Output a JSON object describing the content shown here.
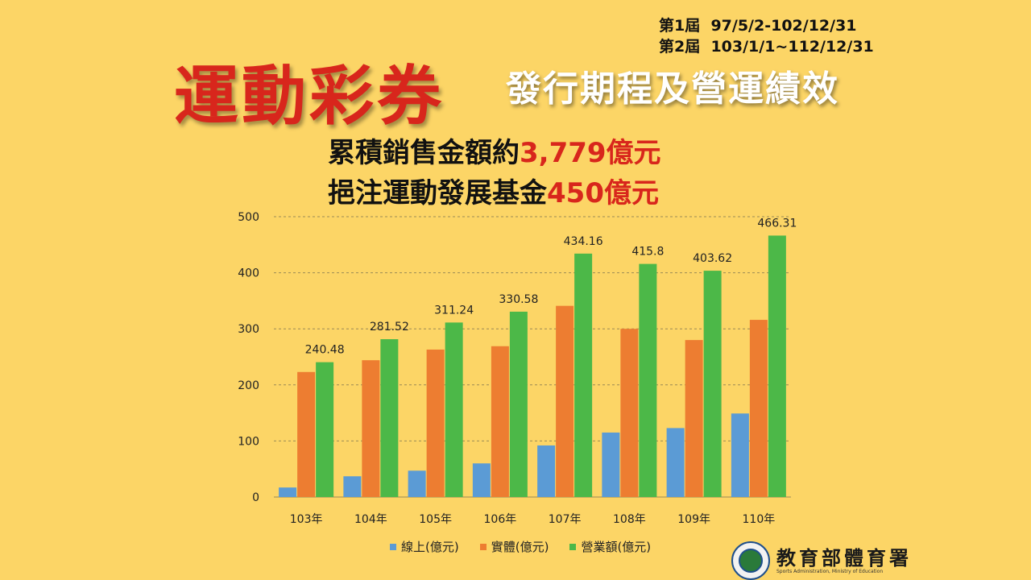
{
  "periods": {
    "first": "第1屆  97/5/2-102/12/31",
    "second": "第2屆  103/1/1~112/12/31"
  },
  "title": {
    "main": "運動彩券",
    "sub": "發行期程及營運績效"
  },
  "stats": {
    "sales_prefix": "累積銷售金額約",
    "sales_value": "3,779億元",
    "fund_prefix": "挹注運動發展基金",
    "fund_value": "450億元"
  },
  "colors": {
    "background": "#FCD566",
    "accent_red": "#D8261C",
    "online": "#5B9BD5",
    "physical": "#ED7D31",
    "revenue": "#4CB848"
  },
  "chart_data": {
    "type": "bar",
    "categories": [
      "103年",
      "104年",
      "105年",
      "106年",
      "107年",
      "108年",
      "109年",
      "110年"
    ],
    "series": [
      {
        "name": "線上(億元)",
        "values": [
          17,
          37,
          47,
          60,
          92,
          115,
          123,
          149
        ]
      },
      {
        "name": "實體(億元)",
        "values": [
          223,
          244,
          263,
          269,
          341,
          300,
          280,
          316
        ]
      },
      {
        "name": "營業額(億元)",
        "values": [
          240.48,
          281.52,
          311.24,
          330.58,
          434.16,
          415.8,
          403.62,
          466.31
        ]
      }
    ],
    "data_labels_series": "營業額(億元)",
    "data_labels": [
      "240.48",
      "281.52",
      "311.24",
      "330.58",
      "434.16",
      "415.8",
      "403.62",
      "466.31"
    ],
    "ylim": [
      0,
      500
    ],
    "yticks": [
      0,
      100,
      200,
      300,
      400,
      500
    ],
    "grid": true,
    "legend": "bottom"
  },
  "legend": {
    "online": "線上(億元)",
    "physical": "實體(億元)",
    "revenue": "營業額(億元)"
  },
  "logo": {
    "name": "教育部體育署",
    "english": "Sports Administration, Ministry of Education"
  }
}
